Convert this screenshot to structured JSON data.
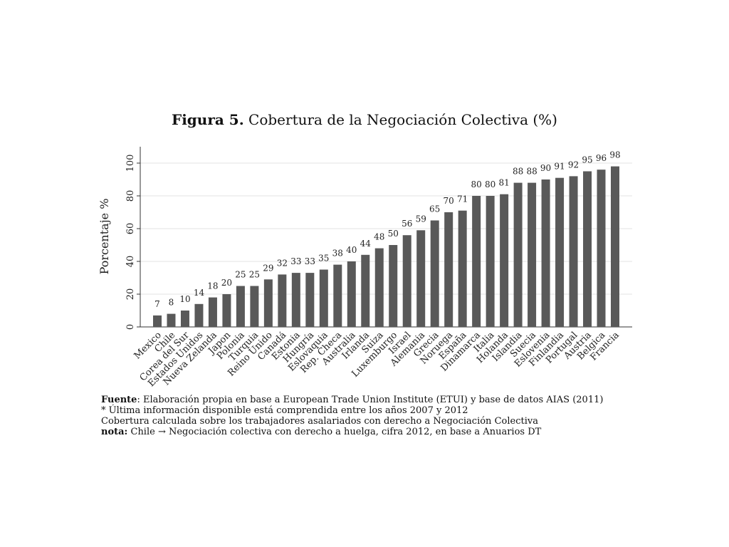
{
  "chart_data": {
    "type": "bar",
    "title_label": "Figura 5.",
    "title_text": "Cobertura de la Negociación Colectiva (%)",
    "ylabel": "Porcentaje %",
    "xlabel": "",
    "ylim": [
      0,
      110
    ],
    "yticks": [
      0,
      20,
      40,
      60,
      80,
      100
    ],
    "grid": true,
    "bar_color": "#595959",
    "categories": [
      "Mexico",
      "Chile",
      "Corea del Sur",
      "Estados Unidos",
      "Nueva Zelanda",
      "Japon",
      "Polonia",
      "Turquia",
      "Reino Unido",
      "Canadá",
      "Estonia",
      "Hungría",
      "Eslovaquia",
      "Rep. Checa",
      "Australia",
      "Irlanda",
      "Suiza",
      "Luxemburgo",
      "Israel",
      "Alemania",
      "Grecia",
      "Noruega",
      "España",
      "Dinamarca",
      "Italia",
      "Holanda",
      "Islandia",
      "Suecia",
      "Eslovenia",
      "Finlandia",
      "Portugal",
      "Austria",
      "Belgica",
      "Francia"
    ],
    "values": [
      7,
      8,
      10,
      14,
      18,
      20,
      25,
      25,
      29,
      32,
      33,
      33,
      35,
      38,
      40,
      44,
      48,
      50,
      56,
      59,
      65,
      70,
      71,
      80,
      80,
      81,
      88,
      88,
      90,
      91,
      92,
      95,
      96,
      98
    ]
  },
  "notes": {
    "fuente_label": "Fuente",
    "fuente_text": ": Elaboración propia en base a European Trade Union Institute (ETUI) y base de datos AIAS (2011)",
    "line2": "* Última información disponible está comprendida entre los años 2007 y 2012",
    "line3": "Cobertura calculada sobre los trabajadores asalariados con derecho a Negociación Colectiva",
    "nota_label": "nota:",
    "nota_text": " Chile → Negociación colectiva con derecho a huelga, cifra 2012, en base a Anuarios DT"
  }
}
